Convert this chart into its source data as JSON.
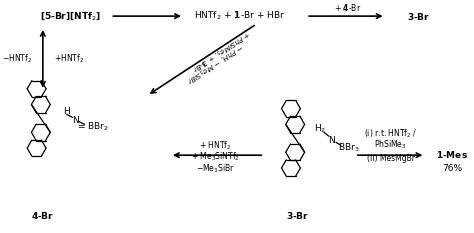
{
  "bg_color": "#ffffff",
  "fig_width": 4.74,
  "fig_height": 2.33,
  "dpi": 100,
  "top_row": {
    "label1": "[5-Br][NTf₂]",
    "label2": "HNTf₂ + 1-Br + HBr",
    "label3": "+ 4-Br",
    "label4": "3-Br"
  },
  "left_arrow": {
    "label_left": "−HNTf₂",
    "label_right": "+HNTf₂"
  },
  "diag_arrow": {
    "line1": "+ PhSiMe₃, + 3-Br",
    "line2": "− PhH, − Me₃SiBr"
  },
  "bot_left_arrow": {
    "line1": "+ HNTf₂",
    "line2": "+ Me₃SiNTf₂",
    "line3": "−Me₃SiBr"
  },
  "bot_right_arrow": {
    "line1": "(i) r.t. HNTf₂ /",
    "line2": "PhSiMe₃",
    "line3": "(ii) MesMgBr"
  },
  "label_1mes": "1-Mes",
  "label_76": "76%",
  "label_4br": "4-Br",
  "label_3br": "3-Br"
}
